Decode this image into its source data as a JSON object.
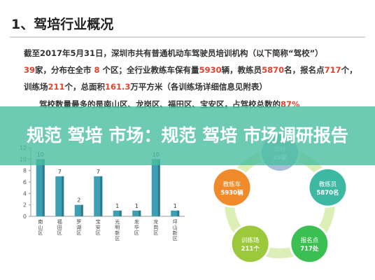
{
  "slide": {
    "title": "1、驾培行业概况",
    "paragraph": {
      "line1": {
        "parts": [
          {
            "text": "截至2017年5月31日，深圳市共有普通机动车驾驶员培训机构（以下简称“驾校”）",
            "hl": false
          }
        ]
      },
      "line2": {
        "parts": [
          {
            "text": "39",
            "hl": true
          },
          {
            "text": "家，分布在全市 ",
            "hl": false
          },
          {
            "text": "8",
            "hl": true
          },
          {
            "text": " 个区；全行业教练车保有量",
            "hl": false
          },
          {
            "text": "5930",
            "hl": true
          },
          {
            "text": "辆，教练员",
            "hl": false
          },
          {
            "text": "5870",
            "hl": true
          },
          {
            "text": "名，报名点",
            "hl": false
          },
          {
            "text": "717",
            "hl": true
          },
          {
            "text": "个，",
            "hl": false
          }
        ]
      },
      "line3": {
        "parts": [
          {
            "text": "训练场",
            "hl": false
          },
          {
            "text": "211",
            "hl": true
          },
          {
            "text": "个，总面积",
            "hl": false
          },
          {
            "text": "161.3",
            "hl": true
          },
          {
            "text": "万平方米（各训练场详细信息见附表）",
            "hl": false
          }
        ]
      },
      "line4": {
        "parts": [
          {
            "text": "驾校数量最多的是南山区、龙岗区、福田区、宝安区，占驾校总数的",
            "hl": false
          },
          {
            "text": "87%",
            "hl": true
          }
        ]
      }
    }
  },
  "banner": {
    "text": "规范 驾培 市场：规范 驾培 市场调研报告"
  },
  "chart_data": {
    "type": "bar",
    "categories": [
      "南山区",
      "福田区",
      "罗湖区",
      "宝安区",
      "光明新区",
      "龙华区",
      "龙岗区",
      "坪山新区"
    ],
    "values": [
      10,
      7,
      2,
      7,
      1,
      1,
      10,
      1
    ],
    "ylim": [
      0,
      12
    ],
    "yticks": [
      0,
      2,
      4,
      6,
      8,
      10,
      12
    ],
    "title": "",
    "xlabel": "",
    "ylabel": "",
    "bar_color": "#3c9fb4",
    "bar_side_color": "#2b7a8d"
  },
  "cycle": {
    "nodes": [
      {
        "name": "驾校",
        "value": "39家",
        "color": "#a7c0d6"
      },
      {
        "name": "教练员",
        "value": "5870名",
        "color": "#3db8a3"
      },
      {
        "name": "报名点",
        "value": "717处",
        "color": "#3cbf52"
      },
      {
        "name": "训练场",
        "value": "211个",
        "color": "#9cc93c"
      },
      {
        "name": "教练车",
        "value": "5930辆",
        "color": "#f08a2a"
      }
    ],
    "ring_color": "#dcefb7"
  }
}
